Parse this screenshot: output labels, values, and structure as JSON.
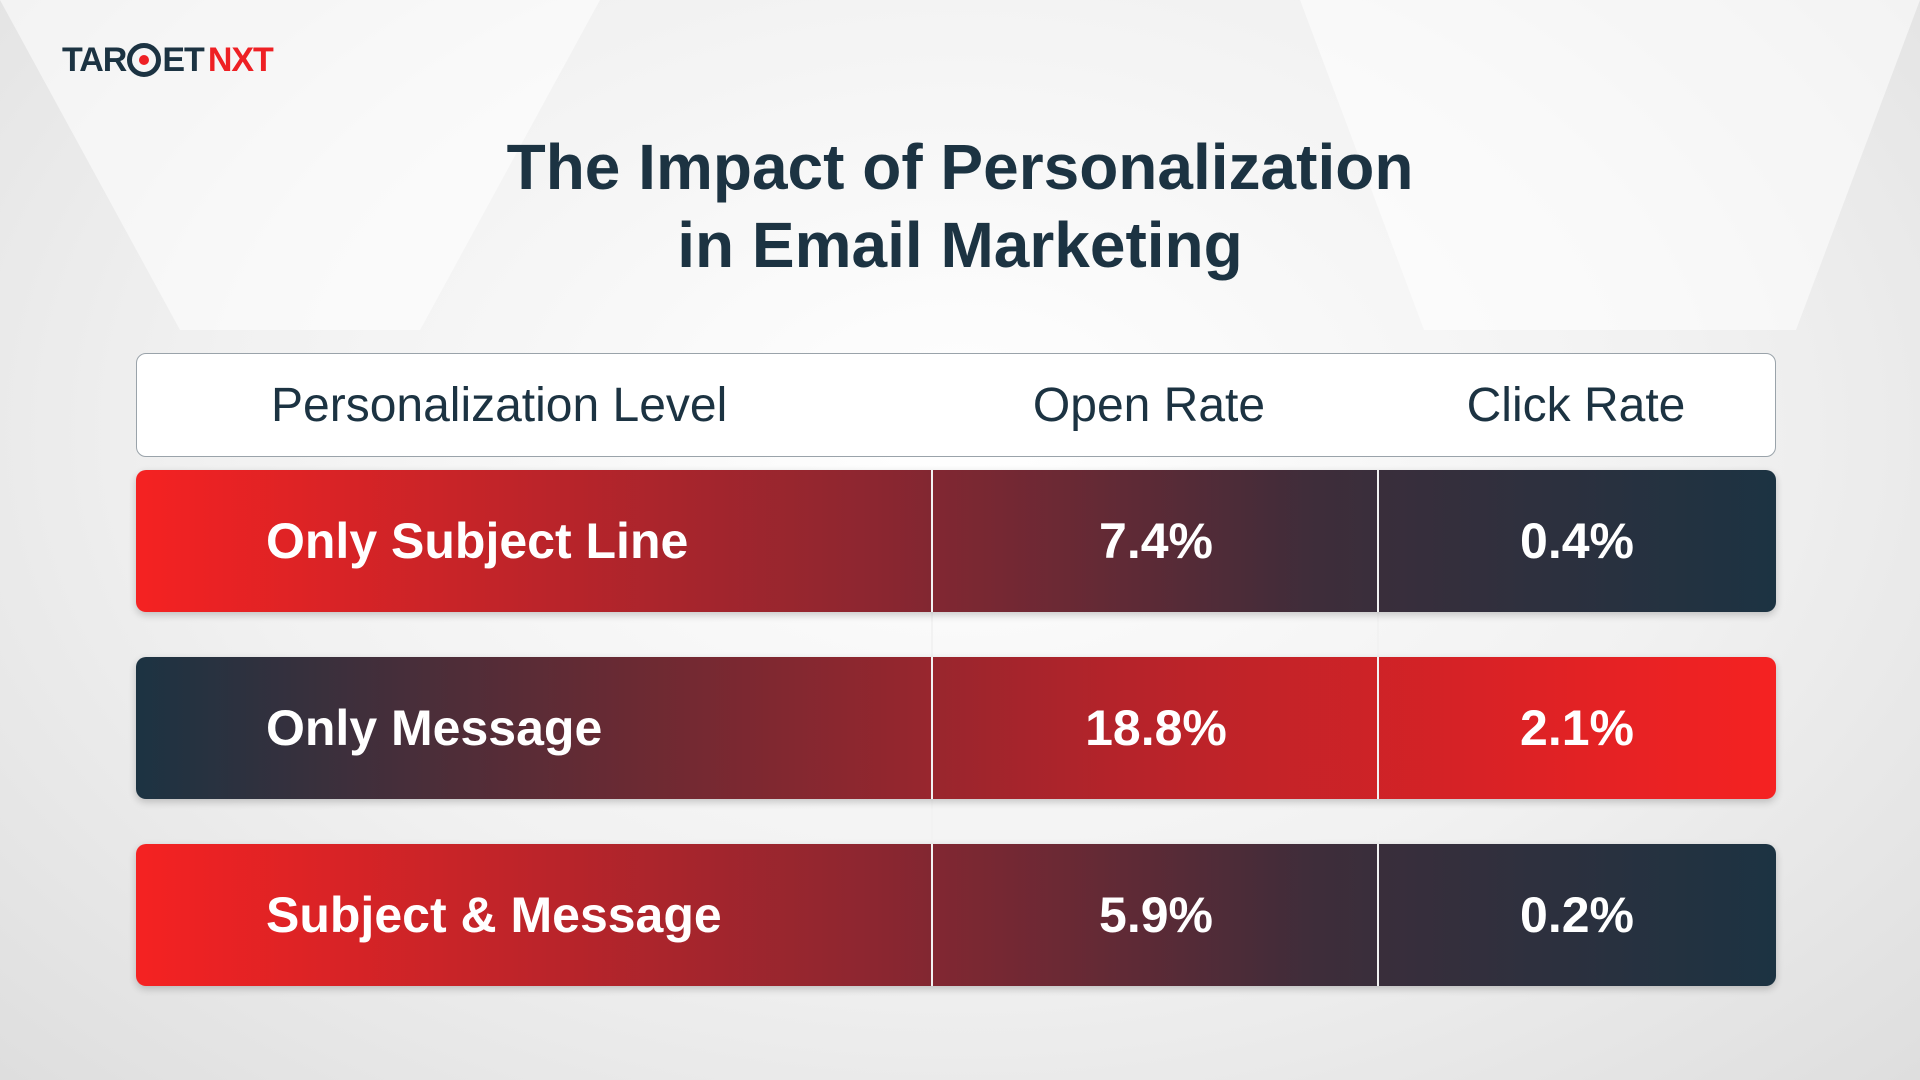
{
  "logo": {
    "text_left": "TAR",
    "text_mid": "ET",
    "text_right": "NXT"
  },
  "title": {
    "line1": "The Impact of Personalization",
    "line2": "in Email Marketing"
  },
  "table": {
    "headers": [
      "Personalization Level",
      "Open Rate",
      "Click Rate"
    ],
    "rows": [
      {
        "level": "Only Subject Line",
        "open_rate": "7.4%",
        "click_rate": "0.4%"
      },
      {
        "level": "Only Message",
        "open_rate": "18.8%",
        "click_rate": "2.1%"
      },
      {
        "level": "Subject & Message",
        "open_rate": "5.9%",
        "click_rate": "0.2%"
      }
    ]
  },
  "colors": {
    "brand_red": "#f52222",
    "brand_navy": "#1c3342"
  }
}
